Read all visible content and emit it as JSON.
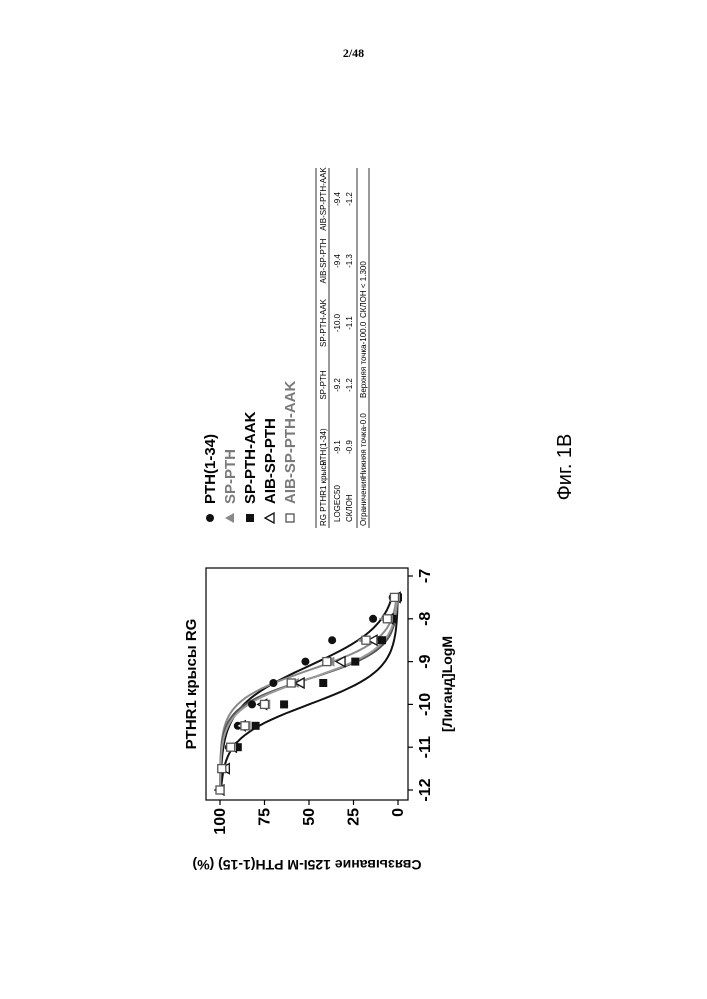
{
  "page_number": "2/48",
  "figure_caption": "Фиг. 1В",
  "chart_data": {
    "type": "scatter",
    "title": "PTHR1 крысы RG",
    "xlabel": "[Лиганд]LogM",
    "ylabel": "Связывание 125I-M PTH(1-15) (%)",
    "xlim": [
      -12,
      -7
    ],
    "ylim": [
      0,
      100
    ],
    "xticks": [
      "-12",
      "-11",
      "-10",
      "-9",
      "-8",
      "-7"
    ],
    "yticks": [
      "0",
      "25",
      "50",
      "75",
      "100"
    ],
    "grid": false,
    "legend_position": "right",
    "series": [
      {
        "name": "PTH(1-34)",
        "marker": "circle-filled",
        "color": "#111111",
        "x": [
          -12,
          -11.5,
          -11,
          -10.5,
          -10,
          -9.5,
          -9,
          -8.5,
          -8,
          -7.5
        ],
        "y": [
          100,
          98,
          95,
          90,
          82,
          70,
          52,
          37,
          14,
          3
        ],
        "logec50": -9.1,
        "slope": -0.9
      },
      {
        "name": "SP-PTH",
        "marker": "triangle-filled",
        "color": "#888888",
        "x": [
          -12,
          -11.5,
          -11,
          -10.5,
          -10,
          -9.5,
          -9,
          -8.5,
          -8,
          -7.5
        ],
        "y": [
          100,
          98,
          93,
          85,
          74,
          58,
          38,
          20,
          8,
          2
        ],
        "logec50": -9.2,
        "slope": -1.2
      },
      {
        "name": "SP-PTH-AAK",
        "marker": "square-filled",
        "color": "#111111",
        "x": [
          -12,
          -11.5,
          -11,
          -10.5,
          -10,
          -9.5,
          -9,
          -8.5,
          -8,
          -7.5
        ],
        "y": [
          100,
          98,
          90,
          80,
          64,
          42,
          24,
          9,
          3,
          0
        ],
        "logec50": -10.0,
        "slope": -1.1
      },
      {
        "name": "AIB-SP-PTH",
        "marker": "triangle-open",
        "color": "#111111",
        "x": [
          -12,
          -11.5,
          -11,
          -10.5,
          -10,
          -9.5,
          -9,
          -8.5,
          -8,
          -7.5
        ],
        "y": [
          100,
          97,
          93,
          88,
          76,
          55,
          32,
          14,
          5,
          1
        ],
        "logec50": -9.4,
        "slope": -1.3
      },
      {
        "name": "AIB-SP-PTH-AAK",
        "marker": "square-open",
        "color": "#555555",
        "x": [
          -12,
          -11.5,
          -11,
          -10.5,
          -10,
          -9.5,
          -9,
          -8.5,
          -8,
          -7.5
        ],
        "y": [
          100,
          99,
          94,
          86,
          75,
          60,
          40,
          18,
          6,
          2
        ],
        "logec50": -9.4,
        "slope": -1.2
      }
    ]
  },
  "results_table": {
    "title": "RG PTHR1 крысы",
    "columns": [
      "PTH(1-34)",
      "SP-PTH",
      "SP-PTH-AAK",
      "AIB-SP-PTH",
      "AIB-SP-PTH-AAK"
    ],
    "rows": [
      {
        "label": "LOGEC50",
        "values": [
          "-9.1",
          "-9.2",
          "-10.0",
          "-9.4",
          "-9.4"
        ]
      },
      {
        "label": "СКЛОН",
        "values": [
          "-0.9",
          "-1.2",
          "-1.1",
          "-1.3",
          "-1.2"
        ]
      }
    ],
    "constraints_label": "Ограничения",
    "constraints": [
      "Нижняя точка-0.0",
      "Верхняя точка-100.0",
      "СКЛОН < 1.300"
    ]
  }
}
